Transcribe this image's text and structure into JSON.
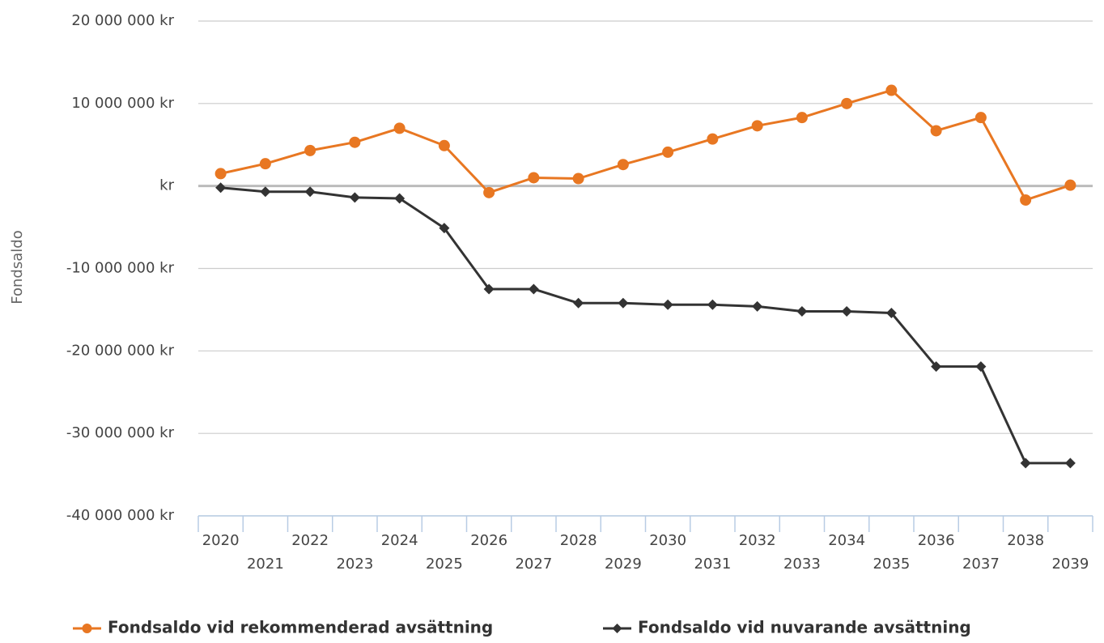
{
  "chart_data": {
    "type": "line",
    "y_label": "Fondsaldo",
    "categories": [
      "2020",
      "2021",
      "2022",
      "2023",
      "2024",
      "2025",
      "2026",
      "2027",
      "2028",
      "2029",
      "2030",
      "2031",
      "2032",
      "2033",
      "2034",
      "2035",
      "2036",
      "2037",
      "2038",
      "2039"
    ],
    "series": [
      {
        "name": "Fondsaldo vid rekommenderad avsättning",
        "color": "#e87722",
        "marker": "circle",
        "values": [
          1500000,
          2700000,
          4300000,
          5300000,
          7000000,
          4900000,
          -800000,
          1000000,
          900000,
          2600000,
          4100000,
          5700000,
          7300000,
          8300000,
          10000000,
          11600000,
          6700000,
          8300000,
          -1700000,
          100000
        ]
      },
      {
        "name": "Fondsaldo vid nuvarande avsättning",
        "color": "#333333",
        "marker": "diamond",
        "values": [
          -200000,
          -700000,
          -700000,
          -1400000,
          -1500000,
          -5100000,
          -12500000,
          -12500000,
          -14200000,
          -14200000,
          -14400000,
          -14400000,
          -14600000,
          -15200000,
          -15200000,
          -15400000,
          -21900000,
          -21900000,
          -33600000,
          -33600000
        ]
      }
    ],
    "ylim": [
      -40000000,
      20000000
    ],
    "yticks": [
      {
        "value": -40000000,
        "label": "-40 000 000 kr"
      },
      {
        "value": -30000000,
        "label": "-30 000 000 kr"
      },
      {
        "value": -20000000,
        "label": "-20 000 000 kr"
      },
      {
        "value": -10000000,
        "label": "-10 000 000 kr"
      },
      {
        "value": 0,
        "label": "kr"
      },
      {
        "value": 10000000,
        "label": "10 000 000 kr"
      },
      {
        "value": 20000000,
        "label": "20 000 000 kr"
      }
    ],
    "grid": true,
    "legend": "bottom"
  }
}
